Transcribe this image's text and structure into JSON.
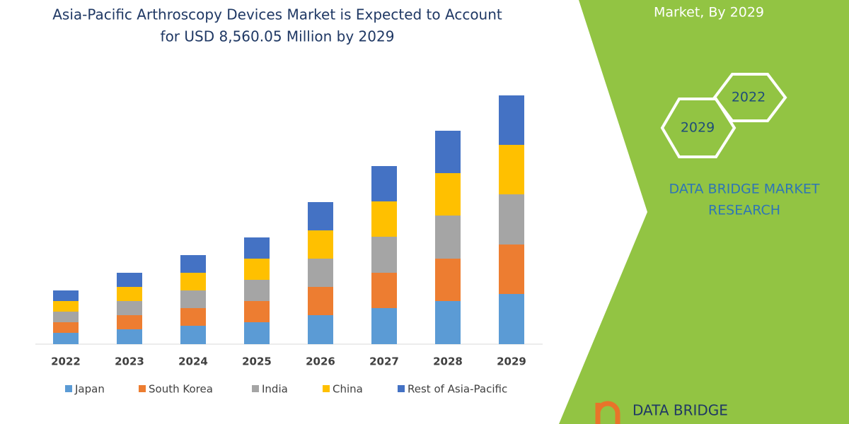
{
  "chart_data": {
    "type": "stacked_bar",
    "title_lines": [
      "Asia-Pacific Arthroscopy Devices Market is Expected to Account",
      "for USD 8,560.05 Million by 2029"
    ],
    "categories": [
      "2022",
      "2023",
      "2024",
      "2025",
      "2026",
      "2027",
      "2028",
      "2029"
    ],
    "series": [
      {
        "name": "Japan",
        "color": "#5b9bd5",
        "values": [
          16,
          21,
          26,
          31,
          41,
          51,
          61,
          71
        ]
      },
      {
        "name": "South Korea",
        "color": "#ed7d31",
        "values": [
          15,
          20,
          25,
          30,
          40,
          50,
          60,
          70
        ]
      },
      {
        "name": "India",
        "color": "#a5a5a5",
        "values": [
          15,
          20,
          25,
          30,
          40,
          51,
          61,
          71
        ]
      },
      {
        "name": "China",
        "color": "#ffc000",
        "values": [
          15,
          20,
          25,
          30,
          40,
          50,
          60,
          70
        ]
      },
      {
        "name": "Rest of Asia-Pacific",
        "color": "#4472c4",
        "values": [
          15,
          20,
          25,
          30,
          40,
          50,
          60,
          70
        ]
      }
    ]
  },
  "side_panel": {
    "heading": "Market, By 2029",
    "hexagons": [
      "2022",
      "2029"
    ],
    "brand_lines": [
      "DATA BRIDGE MARKET",
      "RESEARCH"
    ],
    "logo": "DATA BRIDGE"
  }
}
